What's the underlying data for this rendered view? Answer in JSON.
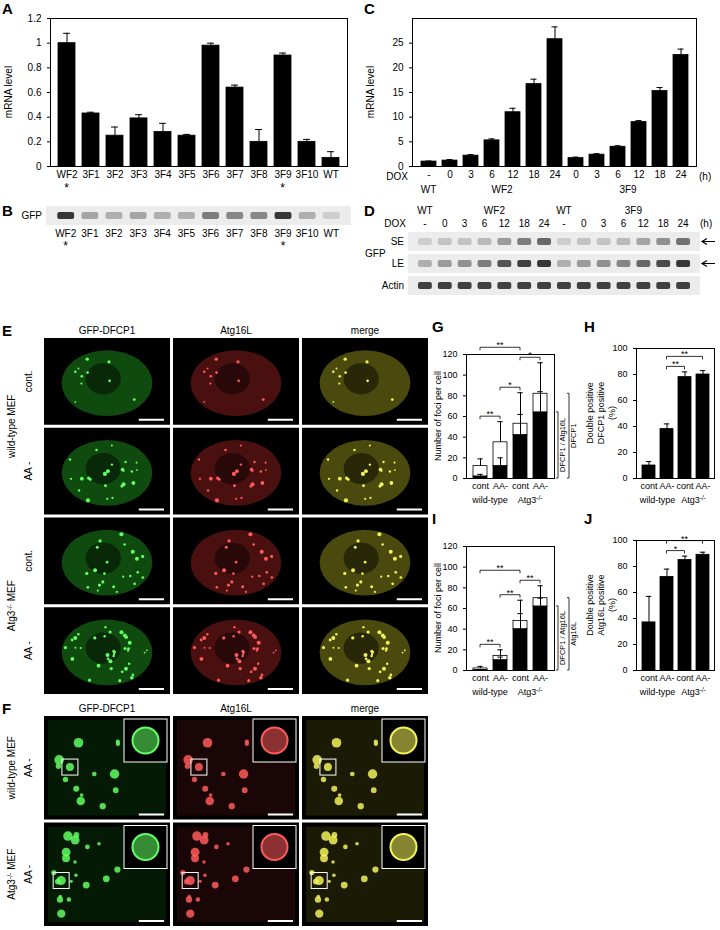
{
  "chart_data": [
    {
      "type": "bar",
      "title": "A",
      "ylabel": "mRNA level",
      "categories": [
        "WF2",
        "3F1",
        "3F2",
        "3F3",
        "3F4",
        "3F5",
        "3F6",
        "3F7",
        "3F8",
        "3F9",
        "3F10",
        "WT"
      ],
      "values": [
        1,
        0.43,
        0.25,
        0.39,
        0.28,
        0.25,
        0.98,
        0.64,
        0.2,
        0.9,
        0.2,
        0.07
      ],
      "errors": [
        0.08,
        0.01,
        0.07,
        0.03,
        0.07,
        0.01,
        0.02,
        0.02,
        0.1,
        0.02,
        0.02,
        0.05
      ],
      "color": "#000000",
      "ylim": [
        0,
        1.2
      ],
      "yticks": [
        0,
        0.2,
        0.4,
        0.6,
        0.8,
        1,
        1.2
      ],
      "annotations": [
        {
          "category": "WF2",
          "text": "*"
        },
        {
          "category": "3F9",
          "text": "*"
        }
      ]
    },
    {
      "type": "bar",
      "title": "C",
      "ylabel": "mRNA level",
      "xlabel": "DOX",
      "x_unit": "(h)",
      "categories": [
        "-",
        "0",
        "3",
        "6",
        "12",
        "18",
        "24",
        "0",
        "3",
        "6",
        "12",
        "18",
        "24"
      ],
      "groups": [
        "WT",
        "WF2",
        "WF2",
        "WF2",
        "WF2",
        "WF2",
        "WF2",
        "3F9",
        "3F9",
        "3F9",
        "3F9",
        "3F9",
        "3F9"
      ],
      "values": [
        1,
        1.2,
        2.2,
        5.3,
        11,
        16.7,
        25.8,
        1.7,
        2.4,
        4,
        9,
        15.3,
        22.6
      ],
      "errors": [
        0.1,
        0.2,
        0.2,
        0.3,
        0.8,
        1,
        2.5,
        0.2,
        0.2,
        0.2,
        0.3,
        0.7,
        1.2
      ],
      "color": "#000000",
      "ylim": [
        0,
        30
      ],
      "yticks": [
        0,
        5,
        10,
        15,
        20,
        25
      ]
    },
    {
      "type": "bar",
      "title": "G",
      "stacked": true,
      "ylabel": "Number of foci per cell",
      "categories": [
        "cont",
        "AA-",
        "cont",
        "AA-"
      ],
      "groups": [
        "wild-type",
        "wild-type",
        "Atg3-/-",
        "Atg3-/-"
      ],
      "series": [
        {
          "name": "DFCP1 / Atg16L",
          "color": "#000000",
          "values": [
            2,
            12,
            42,
            64
          ],
          "errors": [
            2,
            8,
            20,
            20
          ]
        },
        {
          "name": "DFCP1",
          "color": "#ffffff",
          "values": [
            10,
            23,
            11,
            18
          ],
          "errors": [
            7,
            20,
            30,
            30
          ]
        }
      ],
      "ylim": [
        0,
        120
      ],
      "yticks": [
        0,
        20,
        40,
        60,
        80,
        100,
        120
      ],
      "significance": [
        {
          "from": 0,
          "to": 1,
          "label": "**"
        },
        {
          "from": 0,
          "to": 2,
          "label": "**"
        },
        {
          "from": 1,
          "to": 2,
          "label": "*"
        },
        {
          "from": 2,
          "to": 3,
          "label": "*"
        }
      ]
    },
    {
      "type": "bar",
      "title": "H",
      "ylabel": [
        "Double positive",
        "DFCP1 positive",
        "(%)"
      ],
      "categories": [
        "cont",
        "AA-",
        "cont",
        "AA-"
      ],
      "groups": [
        "wild-type",
        "wild-type",
        "Atg3-/-",
        "Atg3-/-"
      ],
      "values": [
        10,
        38,
        78,
        80
      ],
      "errors": [
        3,
        4,
        4,
        3
      ],
      "color": "#000000",
      "ylim": [
        0,
        100
      ],
      "yticks": [
        0,
        20,
        40,
        60,
        80,
        100
      ],
      "significance": [
        {
          "from": 1,
          "to": 2,
          "label": "**"
        },
        {
          "from": 1,
          "to": 3,
          "label": "**"
        }
      ]
    },
    {
      "type": "bar",
      "title": "I",
      "stacked": true,
      "ylabel": "Number of foci per cell",
      "categories": [
        "cont",
        "AA-",
        "cont",
        "AA-"
      ],
      "groups": [
        "wild-type",
        "wild-type",
        "Atg3-/-",
        "Atg3-/-"
      ],
      "series": [
        {
          "name": "DFCP1 / Atg16L",
          "color": "#000000",
          "values": [
            0.5,
            10,
            40,
            62
          ],
          "errors": [
            0.5,
            3,
            15,
            8
          ]
        },
        {
          "name": "Atg16L",
          "color": "#ffffff",
          "values": [
            1.5,
            4,
            8,
            8
          ],
          "errors": [
            2,
            6,
            20,
            12
          ]
        }
      ],
      "ylim": [
        0,
        120
      ],
      "yticks": [
        0,
        20,
        40,
        60,
        80,
        100,
        120
      ],
      "significance": [
        {
          "from": 0,
          "to": 1,
          "label": "**"
        },
        {
          "from": 0,
          "to": 2,
          "label": "**"
        },
        {
          "from": 1,
          "to": 2,
          "label": "**"
        },
        {
          "from": 2,
          "to": 3,
          "label": "**"
        }
      ]
    },
    {
      "type": "bar",
      "title": "J",
      "ylabel": [
        "Double positive",
        "Atg16L positive",
        "(%)"
      ],
      "categories": [
        "cont",
        "AA-",
        "cont",
        "AA-"
      ],
      "groups": [
        "wild-type",
        "wild-type",
        "Atg3-/-",
        "Atg3-/-"
      ],
      "values": [
        37,
        72,
        85,
        89
      ],
      "errors": [
        20,
        6,
        3,
        2
      ],
      "color": "#000000",
      "ylim": [
        0,
        100
      ],
      "yticks": [
        0,
        20,
        40,
        60,
        80,
        100
      ],
      "significance": [
        {
          "from": 1,
          "to": 2,
          "label": "*"
        },
        {
          "from": 1,
          "to": 3,
          "label": "**"
        }
      ]
    }
  ],
  "blots": [
    {
      "title": "B",
      "lanes": [
        "WF2",
        "3F1",
        "3F2",
        "3F3",
        "3F4",
        "3F5",
        "3F6",
        "3F7",
        "3F8",
        "3F9",
        "3F10",
        "WT"
      ],
      "rows": [
        {
          "label": "GFP",
          "intensity": [
            0.9,
            0.35,
            0.3,
            0.35,
            0.3,
            0.3,
            0.55,
            0.5,
            0.5,
            0.9,
            0.3,
            0.15
          ]
        }
      ],
      "marks": [
        {
          "lane": "WF2",
          "text": "*"
        },
        {
          "lane": "3F9",
          "text": "*"
        }
      ]
    },
    {
      "title": "D",
      "xlabel": "DOX",
      "x_unit": "(h)",
      "lanes": [
        "-",
        "0",
        "3",
        "6",
        "12",
        "18",
        "24",
        "-",
        "0",
        "3",
        "6",
        "12",
        "18",
        "24"
      ],
      "groups": [
        "WT",
        "WF2",
        "WF2",
        "WF2",
        "WF2",
        "WF2",
        "WF2",
        "WT",
        "3F9",
        "3F9",
        "3F9",
        "3F9",
        "3F9",
        "3F9"
      ],
      "rows": [
        {
          "protein": "GFP",
          "label": "SE",
          "arrow": true,
          "intensity": [
            0.15,
            0.2,
            0.2,
            0.25,
            0.4,
            0.55,
            0.65,
            0.15,
            0.2,
            0.2,
            0.25,
            0.35,
            0.45,
            0.6
          ]
        },
        {
          "protein": "GFP",
          "label": "LE",
          "arrow": true,
          "intensity": [
            0.3,
            0.4,
            0.45,
            0.55,
            0.75,
            0.85,
            0.9,
            0.3,
            0.4,
            0.45,
            0.5,
            0.65,
            0.8,
            0.9
          ]
        },
        {
          "label": "Actin",
          "intensity": [
            0.85,
            0.85,
            0.85,
            0.85,
            0.85,
            0.85,
            0.85,
            0.85,
            0.85,
            0.85,
            0.85,
            0.85,
            0.85,
            0.85
          ]
        }
      ]
    }
  ],
  "micrographs": [
    {
      "title": "E",
      "columns": [
        "GFP-DFCP1",
        "Atg16L",
        "merge"
      ],
      "row_groups": [
        {
          "label": "wild-type MEF",
          "rows": [
            "cont.",
            "AA -"
          ]
        },
        {
          "label": "Atg3-/- MEF",
          "rows": [
            "cont.",
            "AA -"
          ]
        }
      ]
    },
    {
      "title": "F",
      "columns": [
        "GFP-DFCP1",
        "Atg16L",
        "merge"
      ],
      "row_groups": [
        {
          "label": "wild-type MEF",
          "rows": [
            "AA -"
          ]
        },
        {
          "label": "Atg3-/- MEF",
          "rows": [
            "AA -"
          ]
        }
      ]
    }
  ]
}
